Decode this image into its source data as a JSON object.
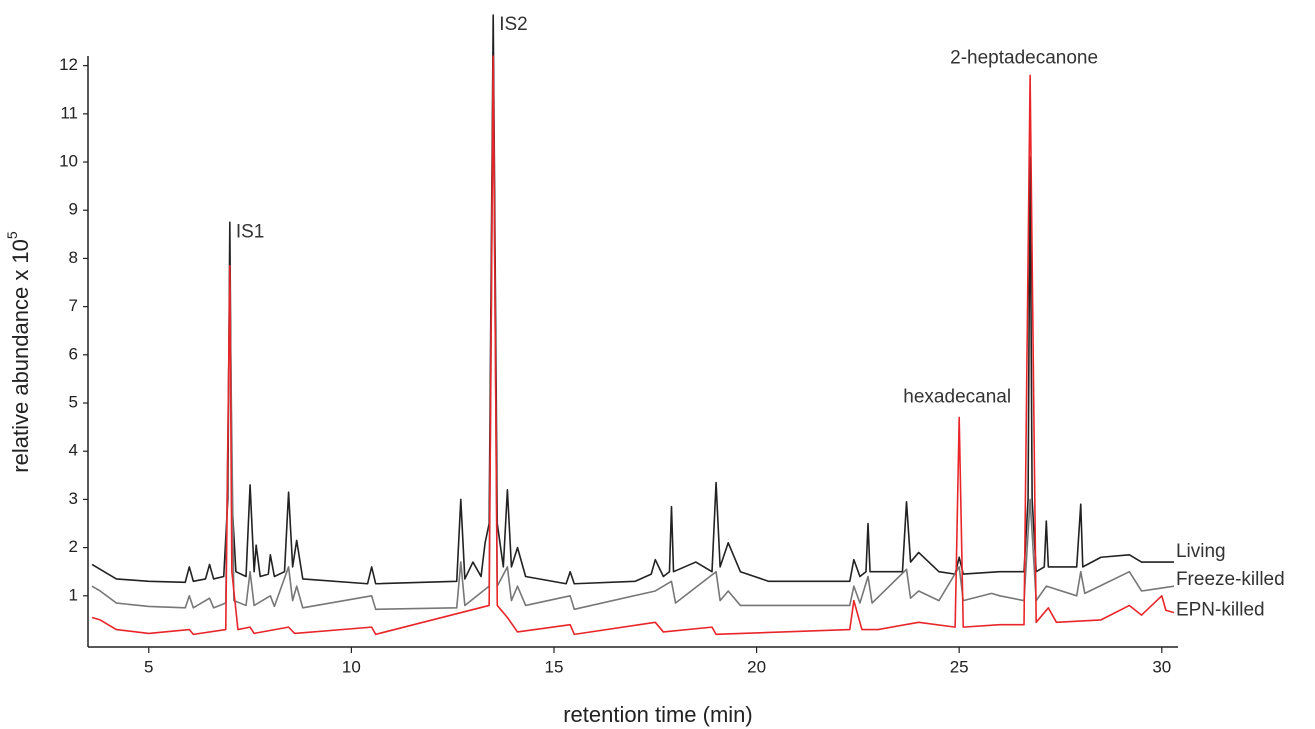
{
  "chart_data": {
    "type": "line",
    "xlabel": "retention time (min)",
    "ylabel": "relative abundance x 10",
    "ylabel_exponent": "5",
    "xlim": [
      3.5,
      30.4
    ],
    "ylim": [
      0,
      12.2
    ],
    "xticks": [
      5,
      10,
      15,
      20,
      25,
      30
    ],
    "yticks": [
      1,
      2,
      3,
      4,
      5,
      6,
      7,
      8,
      9,
      10,
      11,
      12
    ],
    "series": [
      {
        "name": "Living",
        "color": "#222222",
        "x": [
          3.6,
          3.8,
          4.2,
          5,
          5.9,
          6.0,
          6.1,
          6.4,
          6.5,
          6.6,
          6.85,
          6.95,
          7.0,
          7.05,
          7.15,
          7.4,
          7.5,
          7.6,
          7.65,
          7.75,
          7.95,
          8.0,
          8.1,
          8.35,
          8.45,
          8.55,
          8.65,
          8.8,
          10.4,
          10.5,
          10.6,
          12.6,
          12.7,
          12.8,
          13.0,
          13.2,
          13.3,
          13.4,
          13.5,
          13.6,
          13.75,
          13.85,
          13.95,
          14.1,
          14.3,
          15.3,
          15.4,
          15.5,
          17.0,
          17.4,
          17.5,
          17.7,
          17.85,
          17.9,
          17.95,
          18.5,
          18.9,
          19.0,
          19.1,
          19.3,
          19.6,
          20.3,
          22.3,
          22.4,
          22.55,
          22.7,
          22.75,
          22.8,
          23.6,
          23.7,
          23.8,
          24.0,
          24.5,
          24.9,
          25.0,
          25.1,
          26.0,
          26.6,
          26.7,
          26.75,
          26.8,
          26.9,
          27.1,
          27.15,
          27.2,
          27.9,
          28.0,
          28.05,
          28.5,
          29.2,
          29.5,
          30.3
        ],
        "values": [
          1.65,
          1.55,
          1.35,
          1.3,
          1.28,
          1.6,
          1.3,
          1.35,
          1.65,
          1.35,
          1.4,
          3,
          8.75,
          3,
          1.5,
          1.4,
          3.3,
          1.5,
          2.05,
          1.4,
          1.45,
          1.85,
          1.4,
          1.5,
          3.15,
          1.6,
          2.15,
          1.35,
          1.25,
          1.6,
          1.25,
          1.3,
          3.0,
          1.35,
          1.7,
          1.4,
          2.1,
          2.5,
          13.05,
          2.5,
          1.6,
          3.2,
          1.6,
          2.0,
          1.4,
          1.25,
          1.5,
          1.25,
          1.3,
          1.45,
          1.75,
          1.4,
          1.5,
          2.85,
          1.5,
          1.7,
          1.5,
          3.35,
          1.6,
          2.1,
          1.5,
          1.3,
          1.3,
          1.75,
          1.4,
          1.5,
          2.5,
          1.5,
          1.5,
          2.95,
          1.7,
          1.9,
          1.5,
          1.45,
          1.8,
          1.45,
          1.5,
          1.5,
          3,
          10.1,
          3,
          1.5,
          1.6,
          2.55,
          1.6,
          1.6,
          2.9,
          1.6,
          1.8,
          1.85,
          1.7,
          1.7
        ]
      },
      {
        "name": "Freeze-killed",
        "color": "#777777",
        "x": [
          3.6,
          3.8,
          4.2,
          5,
          5.9,
          6.0,
          6.1,
          6.5,
          6.6,
          6.9,
          7.0,
          7.1,
          7.4,
          7.5,
          7.6,
          8.0,
          8.1,
          8.45,
          8.55,
          8.65,
          8.8,
          10.5,
          10.6,
          12.6,
          12.7,
          12.8,
          13.4,
          13.5,
          13.6,
          13.85,
          13.95,
          14.1,
          14.3,
          15.4,
          15.5,
          17.5,
          17.9,
          18.0,
          19.0,
          19.1,
          19.3,
          19.6,
          22.3,
          22.4,
          22.55,
          22.75,
          22.85,
          23.7,
          23.8,
          24.0,
          24.5,
          25.0,
          25.1,
          25.8,
          26.0,
          26.6,
          26.75,
          26.9,
          27.15,
          27.9,
          28.0,
          28.1,
          29.2,
          29.5,
          30.3
        ],
        "values": [
          1.2,
          1.1,
          0.85,
          0.78,
          0.75,
          1.0,
          0.75,
          0.95,
          0.75,
          0.85,
          7.5,
          0.9,
          0.8,
          1.5,
          0.8,
          1.0,
          0.78,
          1.6,
          0.9,
          1.2,
          0.75,
          1.0,
          0.72,
          0.75,
          1.7,
          0.8,
          1.2,
          12.0,
          1.2,
          1.6,
          0.9,
          1.2,
          0.8,
          1.0,
          0.72,
          1.1,
          1.3,
          0.85,
          1.5,
          0.9,
          1.1,
          0.8,
          0.8,
          1.2,
          0.85,
          1.4,
          0.85,
          1.55,
          0.95,
          1.1,
          0.9,
          1.6,
          0.9,
          1.05,
          1.0,
          0.9,
          3.0,
          0.9,
          1.2,
          1.0,
          1.5,
          1.05,
          1.5,
          1.1,
          1.2
        ]
      },
      {
        "name": "EPN-killed",
        "color": "#e8262a",
        "x": [
          3.6,
          3.8,
          4.2,
          5,
          6.0,
          6.1,
          6.9,
          7.0,
          7.05,
          7.2,
          7.5,
          7.6,
          8.45,
          8.6,
          10.5,
          10.6,
          13.4,
          13.5,
          13.6,
          13.85,
          14.1,
          15.4,
          15.5,
          17.5,
          17.7,
          18.9,
          19.0,
          22.3,
          22.4,
          22.6,
          23.0,
          24.0,
          24.9,
          25.0,
          25.1,
          26.0,
          26.6,
          26.75,
          26.9,
          27.2,
          27.4,
          28.5,
          29.2,
          29.5,
          30.0,
          30.1,
          30.3
        ],
        "values": [
          0.55,
          0.5,
          0.3,
          0.22,
          0.3,
          0.2,
          0.3,
          7.85,
          1.5,
          0.3,
          0.35,
          0.22,
          0.35,
          0.22,
          0.35,
          0.2,
          0.8,
          12.2,
          0.8,
          0.55,
          0.25,
          0.4,
          0.2,
          0.45,
          0.25,
          0.35,
          0.2,
          0.3,
          0.9,
          0.3,
          0.3,
          0.45,
          0.35,
          4.7,
          0.35,
          0.4,
          0.4,
          11.8,
          0.45,
          0.75,
          0.45,
          0.5,
          0.8,
          0.6,
          1.0,
          0.7,
          0.65
        ]
      }
    ],
    "annotations": [
      {
        "text": "IS1",
        "x": 7.0,
        "y": 8.75
      },
      {
        "text": "IS2",
        "x": 13.5,
        "y": 13.05
      },
      {
        "text": "hexadecanal",
        "x": 25.0,
        "y": 4.7
      },
      {
        "text": "2-heptadecanone",
        "x": 26.75,
        "y": 11.8
      }
    ]
  }
}
